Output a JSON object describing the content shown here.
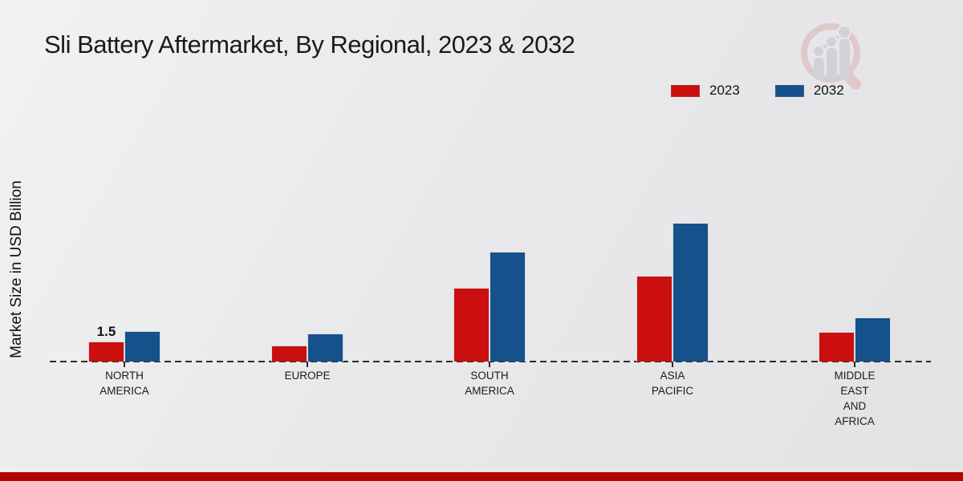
{
  "title": "Sli Battery Aftermarket, By Regional, 2023 & 2032",
  "y_axis_label": "Market Size in USD Billion",
  "colors": {
    "series_2023": "#cb0e0e",
    "series_2032": "#15518a",
    "bottom_accent": "#b00702",
    "background": "#e9e9eb",
    "axis": "#2b2b2b",
    "watermark_red": "#ddb5b7",
    "watermark_gray": "#c3c6cc"
  },
  "watermark_icon": "magnifier-bar-chart-logo",
  "chart_data": {
    "type": "bar",
    "title": "Sli Battery Aftermarket, By Regional, 2023 & 2032",
    "xlabel": "",
    "ylabel": "Market Size in USD Billion",
    "categories": [
      "NORTH AMERICA",
      "EUROPE",
      "SOUTH AMERICA",
      "ASIA PACIFIC",
      "MIDDLE EAST AND AFRICA"
    ],
    "categories_multiline": [
      "NORTH\nAMERICA",
      "EUROPE",
      "SOUTH\nAMERICA",
      "ASIA\nPACIFIC",
      "MIDDLE\nEAST\nAND\nAFRICA"
    ],
    "series": [
      {
        "name": "2023",
        "color": "#cb0e0e",
        "values": [
          1.5,
          1.2,
          5.5,
          6.4,
          2.2
        ]
      },
      {
        "name": "2032",
        "color": "#15518a",
        "values": [
          2.3,
          2.1,
          8.2,
          10.4,
          3.3
        ]
      }
    ],
    "point_labels": [
      {
        "series_index": 0,
        "category_index": 0,
        "text": "1.5"
      }
    ],
    "ylim": [
      0,
      11
    ],
    "grid": false,
    "legend_position": "top-right",
    "baseline_style": "dashed"
  }
}
